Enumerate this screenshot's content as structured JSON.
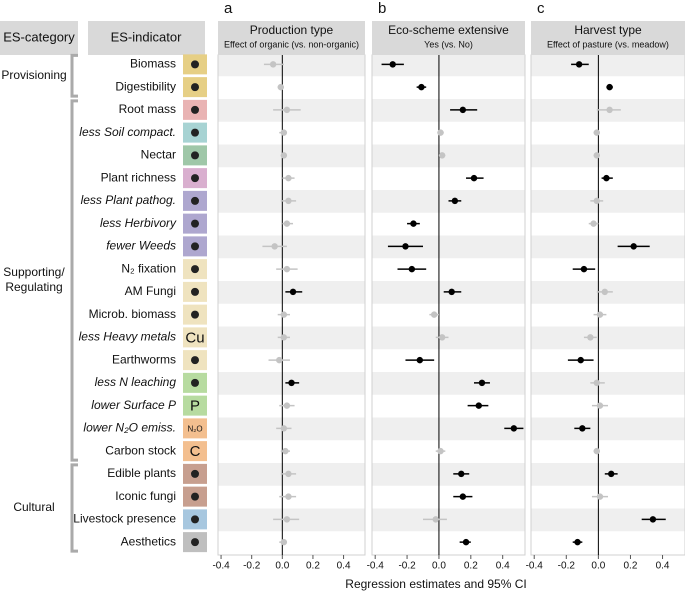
{
  "header": {
    "es_category": "ES-category",
    "es_indicator": "ES-indicator"
  },
  "xlabel": "Regression estimates and 95% CI",
  "es_categories": [
    {
      "label": "Provisioning",
      "indicators": [
        {
          "label": "Biomass",
          "icon_color": "#e6cf85"
        },
        {
          "label": "Digestibility",
          "icon_color": "#e6cf85"
        }
      ]
    },
    {
      "label": "Supporting/\nRegulating",
      "indicators": [
        {
          "label": "Root mass",
          "icon_color": "#e9b3b3"
        },
        {
          "label": "less Soil compact.",
          "italic": true,
          "icon_color": "#a7d3d3"
        },
        {
          "label": "Nectar",
          "icon_color": "#9fc7a8"
        },
        {
          "label": "Plant richness",
          "icon_color": "#d9afcf"
        },
        {
          "label": "less Plant pathog.",
          "italic": true,
          "icon_color": "#aea7cf"
        },
        {
          "label": "less Herbivory",
          "italic": true,
          "icon_color": "#aea7cf"
        },
        {
          "label": "fewer Weeds",
          "italic": true,
          "icon_color": "#aea7cf"
        },
        {
          "label": "N₂ fixation",
          "icon_color": "#efe3bf"
        },
        {
          "label": "AM Fungi",
          "icon_color": "#efe3bf"
        },
        {
          "label": "Microb. biomass",
          "icon_color": "#efe3bf"
        },
        {
          "label": "less Heavy metals",
          "italic": true,
          "icon_color": "#efe3bf",
          "icon_text": "Cu"
        },
        {
          "label": "Earthworms",
          "icon_color": "#efe3bf"
        },
        {
          "label": "less N leaching",
          "italic": true,
          "icon_color": "#b7dba0"
        },
        {
          "label": "lower Surface P",
          "italic": true,
          "icon_color": "#b7dba0",
          "icon_text": "P"
        },
        {
          "label": "lower N₂O emiss.",
          "italic": true,
          "icon_color": "#f3bf8f",
          "icon_text": "N₂O"
        },
        {
          "label": "Carbon stock",
          "icon_color": "#f3bf8f",
          "icon_text": "C"
        }
      ]
    },
    {
      "label": "Cultural",
      "indicators": [
        {
          "label": "Edible plants",
          "icon_color": "#c79f8f"
        },
        {
          "label": "Iconic fungi",
          "icon_color": "#c79f8f"
        },
        {
          "label": "Livestock presence",
          "icon_color": "#a7c7df"
        },
        {
          "label": "Aesthetics",
          "icon_color": "#bfbfbf"
        }
      ]
    }
  ],
  "chart_data": [
    {
      "type": "forest",
      "letter": "a",
      "title": "Production type",
      "subtitle": "Effect of organic (vs. non-organic)",
      "xlim": [
        -0.42,
        0.54
      ],
      "xticks": [
        -0.4,
        -0.2,
        {
          "value": 0,
          "label": "0.0"
        },
        0.2,
        0.4
      ],
      "color": "#000000",
      "ns_color": "#c4c4c4",
      "values": [
        -0.06,
        -0.01,
        0.03,
        0.01,
        0.01,
        0.04,
        0.04,
        0.03,
        -0.05,
        0.03,
        0.07,
        0.01,
        0.01,
        -0.02,
        0.06,
        0.03,
        0.01,
        0.02,
        0.04,
        0.04,
        0.03,
        0.01
      ],
      "lower": [
        -0.12,
        -0.03,
        -0.06,
        -0.02,
        -0.01,
        0.0,
        -0.01,
        0.0,
        -0.13,
        -0.04,
        0.02,
        -0.03,
        -0.03,
        -0.09,
        0.02,
        -0.02,
        -0.04,
        -0.01,
        -0.01,
        -0.02,
        -0.06,
        -0.02
      ],
      "upper": [
        0.01,
        0.01,
        0.12,
        0.03,
        0.03,
        0.08,
        0.09,
        0.07,
        0.03,
        0.1,
        0.13,
        0.05,
        0.05,
        0.05,
        0.11,
        0.08,
        0.06,
        0.05,
        0.09,
        0.09,
        0.11,
        0.03
      ],
      "significant": [
        false,
        false,
        false,
        false,
        false,
        false,
        false,
        false,
        false,
        false,
        true,
        false,
        false,
        false,
        true,
        false,
        false,
        false,
        false,
        false,
        false,
        false
      ]
    },
    {
      "type": "forest",
      "letter": "b",
      "title": "Eco-scheme extensive",
      "subtitle": "Yes (vs. No)",
      "xlim": [
        -0.42,
        0.54
      ],
      "xticks": [
        -0.4,
        -0.2,
        {
          "value": 0,
          "label": "0.0"
        },
        0.2,
        0.4
      ],
      "color": "#000000",
      "ns_color": "#c4c4c4",
      "values": [
        -0.29,
        -0.11,
        0.15,
        0.01,
        0.02,
        0.22,
        0.1,
        -0.16,
        -0.21,
        -0.17,
        0.08,
        -0.03,
        0.02,
        -0.12,
        0.27,
        0.25,
        0.47,
        0.01,
        0.14,
        0.15,
        -0.02,
        0.17
      ],
      "lower": [
        -0.36,
        -0.14,
        0.07,
        -0.01,
        0.0,
        0.17,
        0.06,
        -0.2,
        -0.32,
        -0.26,
        0.03,
        -0.06,
        -0.02,
        -0.21,
        0.22,
        0.18,
        0.41,
        -0.02,
        0.09,
        0.09,
        -0.1,
        0.13
      ],
      "upper": [
        -0.22,
        -0.08,
        0.24,
        0.03,
        0.04,
        0.28,
        0.14,
        -0.12,
        -0.1,
        -0.08,
        0.14,
        0.0,
        0.06,
        -0.03,
        0.32,
        0.31,
        0.53,
        0.04,
        0.19,
        0.21,
        0.05,
        0.2
      ],
      "significant": [
        true,
        true,
        true,
        false,
        false,
        true,
        true,
        true,
        true,
        true,
        true,
        false,
        false,
        true,
        true,
        true,
        true,
        false,
        true,
        true,
        false,
        true
      ]
    },
    {
      "type": "forest",
      "letter": "c",
      "title": "Harvest type",
      "subtitle": "Effect of pasture (vs. meadow)",
      "xlim": [
        -0.42,
        0.54
      ],
      "xticks": [
        -0.4,
        -0.2,
        {
          "value": 0,
          "label": "0.0"
        },
        0.2,
        0.4
      ],
      "color": "#000000",
      "ns_color": "#c4c4c4",
      "values": [
        -0.12,
        0.07,
        0.07,
        -0.01,
        -0.01,
        0.05,
        -0.01,
        -0.03,
        0.22,
        -0.09,
        0.04,
        0.01,
        -0.05,
        -0.11,
        -0.01,
        0.01,
        -0.1,
        -0.01,
        0.08,
        0.01,
        0.34,
        -0.13
      ],
      "lower": [
        -0.17,
        0.05,
        -0.01,
        -0.03,
        -0.03,
        0.02,
        -0.05,
        -0.06,
        0.12,
        -0.16,
        -0.01,
        -0.03,
        -0.09,
        -0.19,
        -0.05,
        -0.04,
        -0.15,
        -0.03,
        0.04,
        -0.04,
        0.27,
        -0.16
      ],
      "upper": [
        -0.06,
        0.09,
        0.14,
        0.01,
        0.01,
        0.09,
        0.03,
        0.0,
        0.32,
        -0.02,
        0.09,
        0.05,
        -0.01,
        -0.03,
        0.04,
        0.06,
        -0.05,
        0.01,
        0.12,
        0.06,
        0.42,
        -0.1
      ],
      "significant": [
        true,
        true,
        false,
        false,
        false,
        true,
        false,
        false,
        true,
        true,
        false,
        false,
        false,
        true,
        false,
        false,
        true,
        false,
        true,
        false,
        true,
        true
      ]
    }
  ]
}
